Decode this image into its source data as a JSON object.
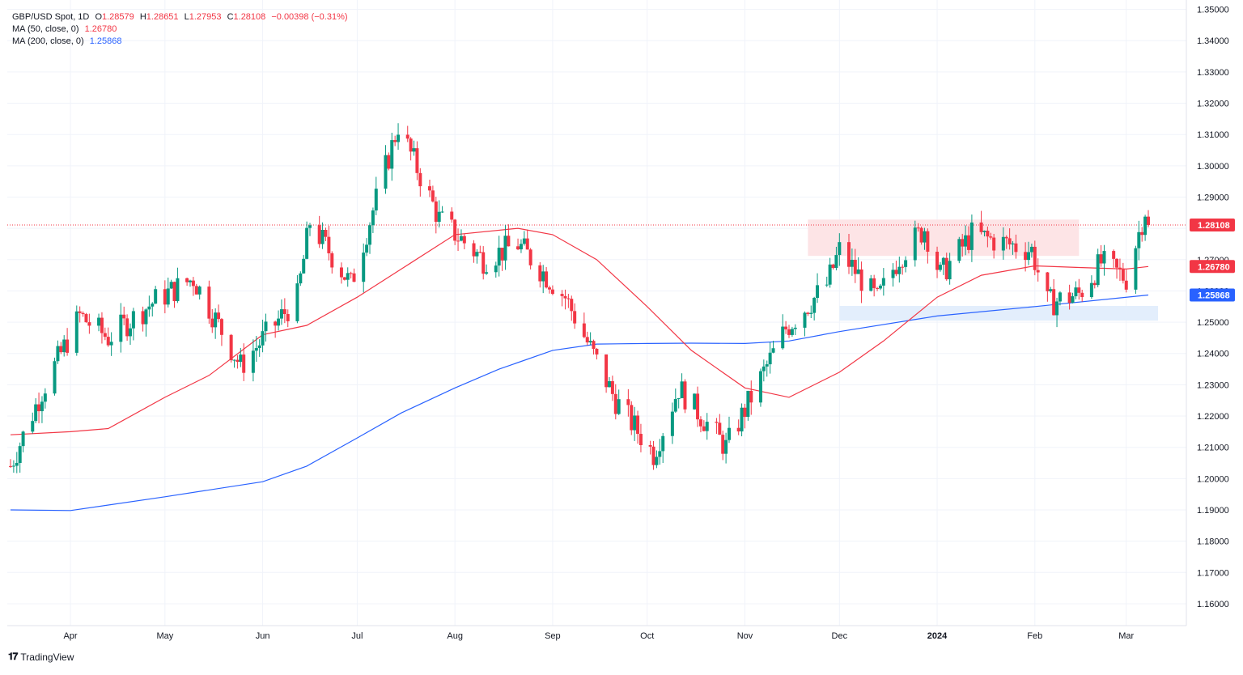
{
  "legend": {
    "symbol": "GBP/USD Spot, 1D",
    "o_label": "O",
    "o": "1.28579",
    "h_label": "H",
    "h": "1.28651",
    "l_label": "L",
    "l": "1.27953",
    "c_label": "C",
    "c": "1.28108",
    "change": "−0.00398 (−0.31%)",
    "ma50_label": "MA (50, close, 0)",
    "ma50_value": "1.26780",
    "ma200_label": "MA (200, close, 0)",
    "ma200_value": "1.25868"
  },
  "footer": {
    "logo": "𝟏𝟕",
    "brand": "TradingView"
  },
  "colors": {
    "up": "#089981",
    "down": "#f23645",
    "ma50": "#f23645",
    "ma200": "#2962ff",
    "resistance_zone": "#fde4e6",
    "support_zone": "#e3eefc"
  },
  "chart_data": {
    "type": "candlestick",
    "ylim": [
      1.153,
      1.353
    ],
    "y_ticks": [
      "1.35000",
      "1.34000",
      "1.33000",
      "1.32000",
      "1.31000",
      "1.30000",
      "1.29000",
      "1.28000",
      "1.27000",
      "1.26000",
      "1.25000",
      "1.24000",
      "1.23000",
      "1.22000",
      "1.21000",
      "1.20000",
      "1.19000",
      "1.18000",
      "1.17000",
      "1.16000"
    ],
    "x_labels": [
      {
        "label": "Apr",
        "date": "2023-04-01"
      },
      {
        "label": "May",
        "date": "2023-05-01"
      },
      {
        "label": "Jun",
        "date": "2023-06-01"
      },
      {
        "label": "Jul",
        "date": "2023-07-01"
      },
      {
        "label": "Aug",
        "date": "2023-08-01"
      },
      {
        "label": "Sep",
        "date": "2023-09-01"
      },
      {
        "label": "Oct",
        "date": "2023-10-01"
      },
      {
        "label": "Nov",
        "date": "2023-11-01"
      },
      {
        "label": "Dec",
        "date": "2023-12-01"
      },
      {
        "label": "2024",
        "date": "2024-01-01",
        "bold": true
      },
      {
        "label": "Feb",
        "date": "2024-02-01"
      },
      {
        "label": "Mar",
        "date": "2024-03-01"
      }
    ],
    "date_range": [
      "2023-03-13",
      "2024-03-08"
    ],
    "last_price": 1.28108,
    "price_badges": [
      {
        "name": "last-price",
        "value": "1.28108",
        "color": "#f23645"
      },
      {
        "name": "ma50",
        "value": "1.26780",
        "color": "#f23645"
      },
      {
        "name": "ma200",
        "value": "1.25868",
        "color": "#2962ff"
      }
    ],
    "zones": [
      {
        "name": "resistance-zone",
        "from": "2023-11-21",
        "to": "2024-02-15",
        "low": 1.2712,
        "high": 1.2828
      },
      {
        "name": "support-zone",
        "from": "2023-12-01",
        "to": "2024-03-13",
        "low": 1.2505,
        "high": 1.2552
      }
    ],
    "price_path": [
      [
        "2023-03-13",
        1.204
      ],
      [
        "2023-03-23",
        1.228
      ],
      [
        "2023-04-04",
        1.252
      ],
      [
        "2023-04-13",
        1.245
      ],
      [
        "2023-04-28",
        1.257
      ],
      [
        "2023-05-10",
        1.264
      ],
      [
        "2023-05-25",
        1.236
      ],
      [
        "2023-06-12",
        1.258
      ],
      [
        "2023-06-16",
        1.282
      ],
      [
        "2023-06-29",
        1.262
      ],
      [
        "2023-07-14",
        1.313
      ],
      [
        "2023-07-27",
        1.283
      ],
      [
        "2023-08-10",
        1.27
      ],
      [
        "2023-08-21",
        1.275
      ],
      [
        "2023-09-05",
        1.258
      ],
      [
        "2023-09-21",
        1.225
      ],
      [
        "2023-10-03",
        1.208
      ],
      [
        "2023-10-11",
        1.229
      ],
      [
        "2023-10-26",
        1.21
      ],
      [
        "2023-11-14",
        1.248
      ],
      [
        "2023-11-27",
        1.262
      ],
      [
        "2023-12-01",
        1.273
      ],
      [
        "2023-12-13",
        1.257
      ],
      [
        "2023-12-20",
        1.271
      ],
      [
        "2023-12-28",
        1.28
      ],
      [
        "2024-01-02",
        1.265
      ],
      [
        "2024-01-12",
        1.278
      ],
      [
        "2024-01-31",
        1.273
      ],
      [
        "2024-02-05",
        1.256
      ],
      [
        "2024-02-15",
        1.259
      ],
      [
        "2024-02-22",
        1.269
      ],
      [
        "2024-03-01",
        1.264
      ],
      [
        "2024-03-07",
        1.286
      ],
      [
        "2024-03-08",
        1.2811
      ]
    ],
    "ma50_path": [
      [
        "2023-03-13",
        1.214
      ],
      [
        "2023-04-01",
        1.215
      ],
      [
        "2023-04-13",
        1.216
      ],
      [
        "2023-05-01",
        1.226
      ],
      [
        "2023-05-15",
        1.233
      ],
      [
        "2023-06-01",
        1.246
      ],
      [
        "2023-06-15",
        1.249
      ],
      [
        "2023-07-01",
        1.258
      ],
      [
        "2023-07-15",
        1.267
      ],
      [
        "2023-08-01",
        1.278
      ],
      [
        "2023-08-21",
        1.28
      ],
      [
        "2023-09-01",
        1.278
      ],
      [
        "2023-09-15",
        1.27
      ],
      [
        "2023-10-01",
        1.255
      ],
      [
        "2023-10-15",
        1.241
      ],
      [
        "2023-11-01",
        1.229
      ],
      [
        "2023-11-15",
        1.226
      ],
      [
        "2023-12-01",
        1.234
      ],
      [
        "2023-12-15",
        1.244
      ],
      [
        "2024-01-01",
        1.258
      ],
      [
        "2024-01-15",
        1.265
      ],
      [
        "2024-02-01",
        1.268
      ],
      [
        "2024-02-15",
        1.2675
      ],
      [
        "2024-03-01",
        1.267
      ],
      [
        "2024-03-08",
        1.2678
      ]
    ],
    "ma200_path": [
      [
        "2023-03-13",
        1.19
      ],
      [
        "2023-04-01",
        1.1898
      ],
      [
        "2023-05-01",
        1.1942
      ],
      [
        "2023-06-01",
        1.199
      ],
      [
        "2023-06-15",
        1.204
      ],
      [
        "2023-07-01",
        1.213
      ],
      [
        "2023-07-15",
        1.221
      ],
      [
        "2023-08-01",
        1.229
      ],
      [
        "2023-08-15",
        1.235
      ],
      [
        "2023-09-01",
        1.241
      ],
      [
        "2023-09-15",
        1.243
      ],
      [
        "2023-10-01",
        1.2432
      ],
      [
        "2023-10-15",
        1.2433
      ],
      [
        "2023-11-01",
        1.2432
      ],
      [
        "2023-11-15",
        1.244
      ],
      [
        "2023-12-01",
        1.247
      ],
      [
        "2024-01-01",
        1.252
      ],
      [
        "2024-02-01",
        1.255
      ],
      [
        "2024-03-08",
        1.2587
      ]
    ]
  }
}
